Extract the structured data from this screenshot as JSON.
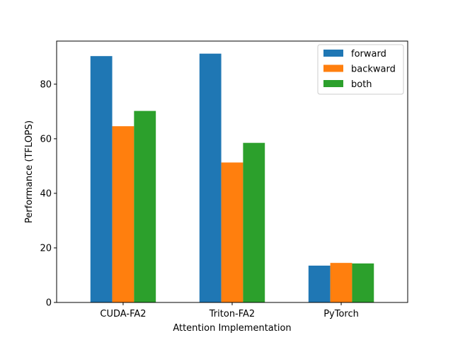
{
  "chart_data": {
    "type": "bar",
    "title": "",
    "xlabel": "Attention Implementation",
    "ylabel": "Performance (TFLOPS)",
    "categories": [
      "CUDA-FA2",
      "Triton-FA2",
      "PyTorch"
    ],
    "series": [
      {
        "name": "forward",
        "color": "#1f77b4",
        "values": [
          90.3,
          91.2,
          13.5
        ]
      },
      {
        "name": "backward",
        "color": "#ff7f0e",
        "values": [
          64.6,
          51.3,
          14.5
        ]
      },
      {
        "name": "both",
        "color": "#2ca02c",
        "values": [
          70.2,
          58.5,
          14.3
        ]
      }
    ],
    "ylim": [
      0,
      95.8
    ],
    "yticks": [
      0,
      20,
      40,
      60,
      80
    ],
    "legend_position": "top-right",
    "grid": false
  }
}
